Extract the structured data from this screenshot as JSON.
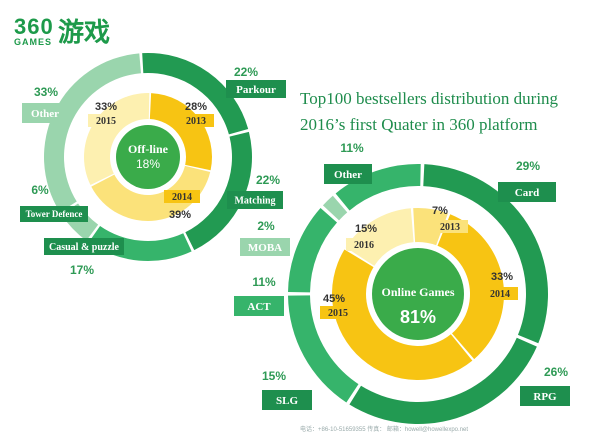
{
  "logo": {
    "number": "360",
    "games": "GAMES",
    "chinese": "游戏"
  },
  "title_line1": "Top100 bestsellers distribution during",
  "title_line2": "2016’s first Quater in 360 platform",
  "footer": "电话：+86-10-51659355   传真：   邮箱：howell@howellexpo.net",
  "colors": {
    "dark_green": "#229a52",
    "mid_green": "#36b46b",
    "light_green": "#9ad5ad",
    "yellow": "#f7c413",
    "light_yellow": "#fbe27a",
    "pale_yellow": "#fdf0b0",
    "center_green": "#3aab4a",
    "label_bg": "#1e8f4e"
  },
  "chart_data": [
    {
      "type": "pie",
      "center_label": "Off-line",
      "center_value": "18%",
      "outer_ring": {
        "slices": [
          {
            "name": "Parkour",
            "value": 22,
            "label": "22%"
          },
          {
            "name": "Matching",
            "value": 22,
            "label": "22%"
          },
          {
            "name": "Casual & puzzle",
            "value": 17,
            "label": "17%"
          },
          {
            "name": "Tower Defence",
            "value": 6,
            "label": "6%"
          },
          {
            "name": "Other",
            "value": 33,
            "label": "33%"
          }
        ]
      },
      "inner_ring": {
        "slices": [
          {
            "name": "2013",
            "value": 28,
            "label": "28%"
          },
          {
            "name": "2014",
            "value": 39,
            "label": "39%"
          },
          {
            "name": "2015",
            "value": 33,
            "label": "33%"
          }
        ]
      }
    },
    {
      "type": "pie",
      "center_label": "Online Games",
      "center_value": "81%",
      "outer_ring": {
        "slices": [
          {
            "name": "Card",
            "value": 29,
            "label": "29%"
          },
          {
            "name": "RPG",
            "value": 26,
            "label": "26%"
          },
          {
            "name": "SLG",
            "value": 15,
            "label": "15%"
          },
          {
            "name": "ACT",
            "value": 11,
            "label": "11%"
          },
          {
            "name": "MOBA",
            "value": 2,
            "label": "2%"
          },
          {
            "name": "Other",
            "value": 11,
            "label": "11%"
          }
        ]
      },
      "inner_ring": {
        "slices": [
          {
            "name": "2013",
            "value": 7,
            "label": "7%"
          },
          {
            "name": "2014",
            "value": 33,
            "label": "33%"
          },
          {
            "name": "2015",
            "value": 45,
            "label": "45%"
          },
          {
            "name": "2016",
            "value": 15,
            "label": "15%"
          }
        ]
      }
    }
  ]
}
